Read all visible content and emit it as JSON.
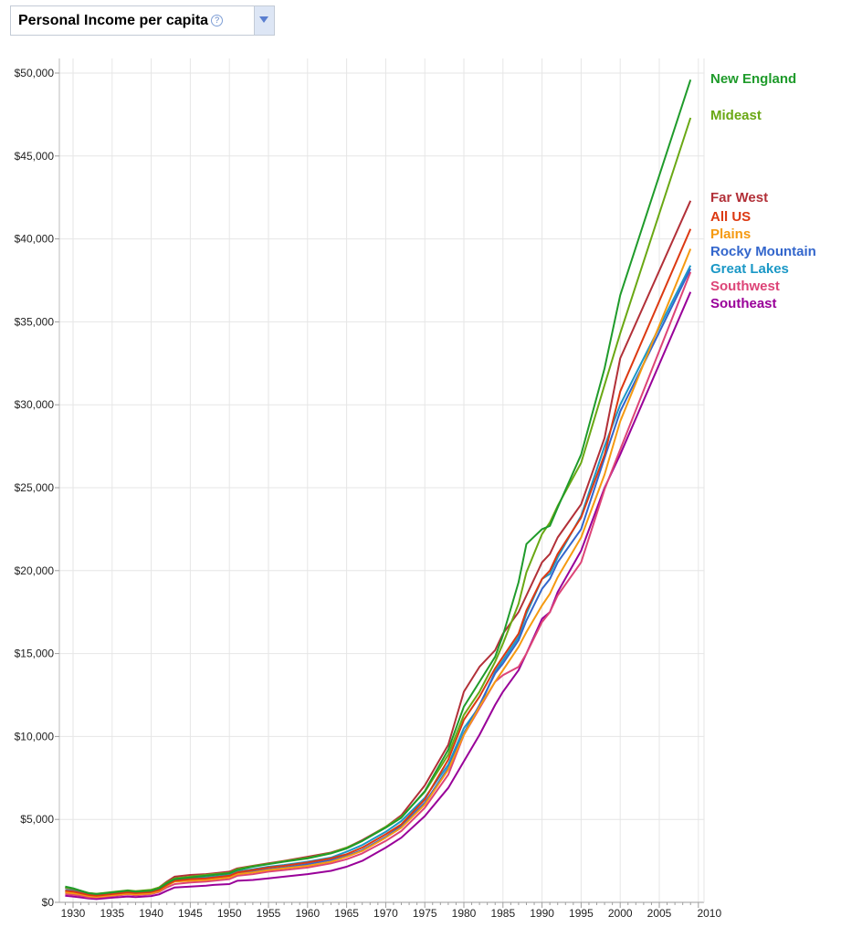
{
  "metric_selector": {
    "label": "Personal Income per capita",
    "help_icon": "question-mark-icon",
    "help_glyph": "?",
    "dropdown_icon": "triangle-down-icon"
  },
  "chart_data": {
    "type": "line",
    "title": "",
    "xlabel": "",
    "ylabel": "",
    "xlim": [
      1929,
      2010
    ],
    "ylim": [
      0,
      50000
    ],
    "x_ticks": [
      1930,
      1935,
      1940,
      1945,
      1950,
      1955,
      1960,
      1965,
      1970,
      1975,
      1980,
      1985,
      1990,
      1995,
      2000,
      2005,
      2010
    ],
    "y_ticks": [
      0,
      5000,
      10000,
      15000,
      20000,
      25000,
      30000,
      35000,
      40000,
      45000,
      50000
    ],
    "y_tick_labels": [
      "$0",
      "$5,000",
      "$10,000",
      "$15,000",
      "$20,000",
      "$25,000",
      "$30,000",
      "$35,000",
      "$40,000",
      "$45,000",
      "$50,000"
    ],
    "grid": true,
    "legend_position": "right",
    "x": [
      1929,
      1930,
      1931,
      1932,
      1933,
      1935,
      1937,
      1938,
      1940,
      1941,
      1942,
      1943,
      1945,
      1947,
      1948,
      1950,
      1951,
      1953,
      1955,
      1957,
      1960,
      1963,
      1965,
      1967,
      1970,
      1972,
      1975,
      1978,
      1980,
      1982,
      1984,
      1985,
      1987,
      1988,
      1990,
      1991,
      1992,
      1995,
      1998,
      2000,
      2009
    ],
    "series": [
      {
        "name": "New England",
        "color": "#1f9b2b",
        "values": [
          950,
          850,
          700,
          550,
          500,
          600,
          700,
          650,
          700,
          850,
          1150,
          1400,
          1500,
          1600,
          1650,
          1750,
          1950,
          2150,
          2300,
          2450,
          2650,
          2950,
          3250,
          3700,
          4500,
          5100,
          6700,
          9200,
          11800,
          13300,
          14800,
          16100,
          19300,
          21600,
          22500,
          22700,
          23800,
          27000,
          32200,
          36600,
          49600
        ]
      },
      {
        "name": "Mideast",
        "color": "#6aa814",
        "values": [
          900,
          820,
          700,
          560,
          520,
          620,
          720,
          680,
          760,
          900,
          1200,
          1450,
          1550,
          1650,
          1700,
          1780,
          2000,
          2180,
          2330,
          2480,
          2680,
          2980,
          3300,
          3700,
          4550,
          5150,
          6650,
          8900,
          11300,
          12700,
          14500,
          15600,
          18000,
          19900,
          22200,
          22900,
          23900,
          26500,
          31200,
          34300,
          47300
        ]
      },
      {
        "name": "Far West",
        "color": "#b23038",
        "values": [
          880,
          800,
          680,
          550,
          500,
          600,
          700,
          660,
          740,
          900,
          1250,
          1550,
          1650,
          1700,
          1750,
          1850,
          2050,
          2200,
          2350,
          2500,
          2750,
          3000,
          3300,
          3750,
          4550,
          5250,
          7050,
          9500,
          12700,
          14200,
          15200,
          16200,
          17500,
          18500,
          20500,
          21000,
          22000,
          24000,
          28000,
          32800,
          42300
        ]
      },
      {
        "name": "All US",
        "color": "#dc3912",
        "values": [
          700,
          650,
          550,
          450,
          400,
          500,
          600,
          560,
          620,
          750,
          1050,
          1300,
          1400,
          1450,
          1500,
          1600,
          1800,
          1950,
          2100,
          2200,
          2400,
          2650,
          2900,
          3300,
          4100,
          4700,
          6200,
          8600,
          11000,
          12400,
          14100,
          14800,
          16200,
          17600,
          19500,
          20000,
          21000,
          23200,
          27000,
          30800,
          40600
        ]
      },
      {
        "name": "Plains",
        "color": "#f59a11",
        "values": [
          600,
          550,
          480,
          380,
          330,
          430,
          520,
          480,
          540,
          680,
          1000,
          1250,
          1300,
          1350,
          1400,
          1500,
          1700,
          1800,
          1950,
          2050,
          2200,
          2450,
          2750,
          3100,
          3900,
          4500,
          5900,
          8000,
          10100,
          11800,
          13300,
          14000,
          15400,
          16300,
          17900,
          18600,
          19600,
          22000,
          25800,
          29000,
          39400
        ]
      },
      {
        "name": "Rocky Mountain",
        "color": "#3366cc",
        "values": [
          650,
          600,
          500,
          400,
          350,
          450,
          550,
          500,
          560,
          700,
          1050,
          1300,
          1350,
          1400,
          1450,
          1550,
          1750,
          1850,
          2000,
          2100,
          2300,
          2550,
          2800,
          3150,
          3950,
          4600,
          6000,
          8100,
          10200,
          11900,
          13800,
          14400,
          15800,
          17000,
          18900,
          19500,
          20500,
          22500,
          26800,
          29600,
          38200
        ]
      },
      {
        "name": "Great Lakes",
        "color": "#1b98c6",
        "values": [
          750,
          700,
          600,
          450,
          400,
          520,
          620,
          560,
          640,
          800,
          1150,
          1400,
          1450,
          1500,
          1550,
          1650,
          1850,
          2000,
          2150,
          2250,
          2450,
          2700,
          3050,
          3450,
          4250,
          4900,
          6300,
          8300,
          10500,
          11800,
          13900,
          14600,
          16000,
          17400,
          19500,
          19800,
          20800,
          23300,
          27500,
          30000,
          38400
        ]
      },
      {
        "name": "Southwest",
        "color": "#dd4477",
        "values": [
          500,
          450,
          400,
          300,
          280,
          380,
          480,
          430,
          500,
          620,
          900,
          1100,
          1200,
          1250,
          1300,
          1400,
          1600,
          1700,
          1850,
          1950,
          2100,
          2350,
          2600,
          2950,
          3700,
          4300,
          5700,
          7700,
          10100,
          11700,
          13300,
          13700,
          14200,
          15000,
          16900,
          17500,
          18500,
          20500,
          24900,
          27300,
          38000
        ]
      },
      {
        "name": "Southeast",
        "color": "#990099",
        "values": [
          400,
          350,
          300,
          230,
          200,
          280,
          350,
          320,
          380,
          480,
          700,
          900,
          950,
          1000,
          1050,
          1100,
          1300,
          1350,
          1450,
          1550,
          1700,
          1900,
          2150,
          2500,
          3300,
          3900,
          5200,
          6900,
          8500,
          10100,
          11900,
          12700,
          14000,
          15000,
          17100,
          17500,
          18700,
          21200,
          25000,
          27000,
          36800
        ]
      }
    ]
  }
}
